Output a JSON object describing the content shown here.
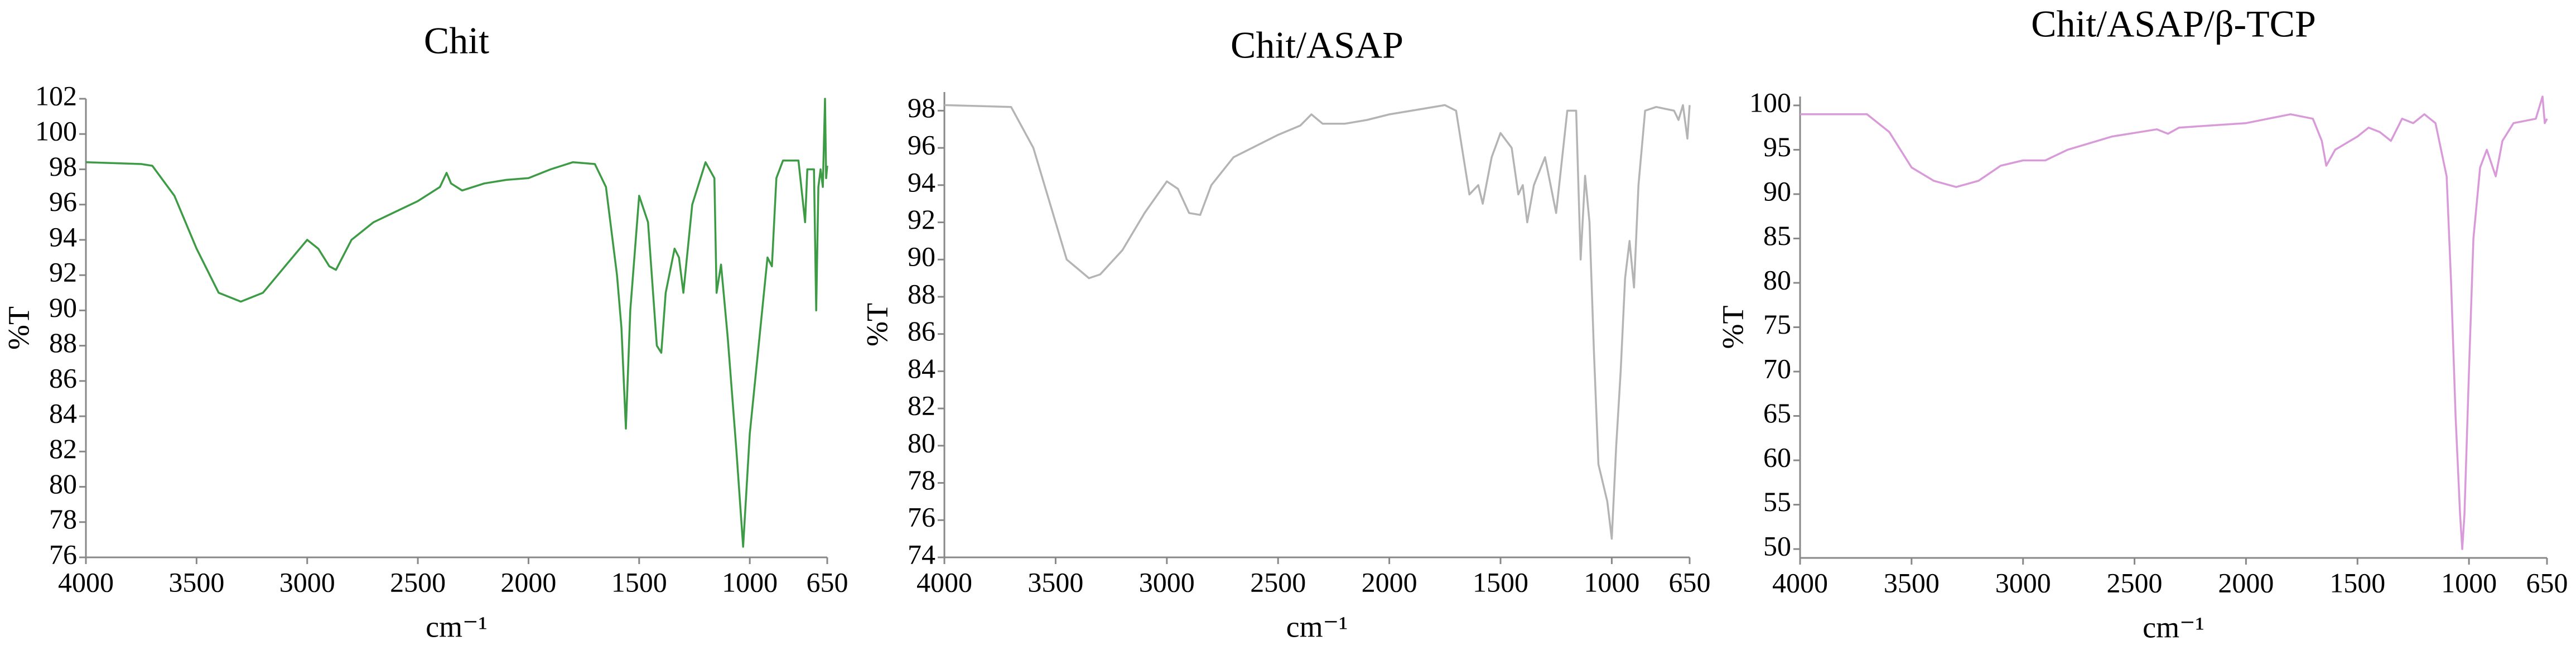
{
  "chart_data": [
    {
      "type": "line",
      "title": "Chit",
      "x_label": "cm⁻¹",
      "y_label": "%T",
      "color": "#3d9a45",
      "xlim": [
        4000,
        650
      ],
      "xticks": [
        4000,
        3500,
        3000,
        2500,
        2000,
        1500,
        1000,
        650
      ],
      "ylim": [
        76,
        102
      ],
      "yticks": [
        76,
        78,
        80,
        82,
        84,
        86,
        88,
        90,
        92,
        94,
        96,
        98,
        100,
        102
      ],
      "x": [
        4000,
        3750,
        3700,
        3600,
        3500,
        3400,
        3300,
        3200,
        3100,
        3000,
        2950,
        2900,
        2870,
        2800,
        2700,
        2500,
        2400,
        2370,
        2350,
        2300,
        2200,
        2100,
        2000,
        1900,
        1800,
        1700,
        1650,
        1600,
        1580,
        1560,
        1540,
        1500,
        1460,
        1420,
        1400,
        1380,
        1340,
        1320,
        1300,
        1260,
        1200,
        1160,
        1150,
        1130,
        1100,
        1060,
        1030,
        1000,
        960,
        920,
        900,
        880,
        850,
        780,
        750,
        740,
        710,
        700,
        690,
        680,
        670,
        660,
        655,
        650
      ],
      "values": [
        98.4,
        98.3,
        98.2,
        96.5,
        93.5,
        91,
        90.5,
        91,
        92.5,
        94,
        93.5,
        92.5,
        92.3,
        94,
        95,
        96.2,
        97,
        97.8,
        97.2,
        96.8,
        97.2,
        97.4,
        97.5,
        98,
        98.4,
        98.3,
        97,
        92,
        89,
        83.3,
        90,
        96.5,
        95,
        88,
        87.6,
        91,
        93.5,
        93,
        91,
        96,
        98.4,
        97.5,
        91,
        92.6,
        88.5,
        82,
        76.6,
        83,
        88,
        93,
        92.5,
        97.5,
        98.5,
        98.5,
        95,
        98,
        98,
        90,
        97,
        98,
        97,
        102,
        97.5,
        98.2
      ]
    },
    {
      "type": "line",
      "title": "Chit/ASAP",
      "x_label": "cm⁻¹",
      "y_label": "%T",
      "color": "#b4b4b4",
      "xlim": [
        4000,
        650
      ],
      "xticks": [
        4000,
        3500,
        3000,
        2500,
        2000,
        1500,
        1000,
        650
      ],
      "ylim": [
        74,
        99
      ],
      "yticks": [
        74,
        76,
        78,
        80,
        82,
        84,
        86,
        88,
        90,
        92,
        94,
        96,
        98
      ],
      "x": [
        4000,
        3700,
        3600,
        3500,
        3450,
        3400,
        3350,
        3300,
        3200,
        3100,
        3000,
        2950,
        2900,
        2850,
        2800,
        2700,
        2500,
        2400,
        2350,
        2300,
        2200,
        2100,
        2000,
        1900,
        1750,
        1700,
        1660,
        1640,
        1600,
        1580,
        1540,
        1500,
        1450,
        1420,
        1400,
        1380,
        1350,
        1300,
        1250,
        1200,
        1160,
        1140,
        1120,
        1100,
        1080,
        1060,
        1040,
        1020,
        1000,
        980,
        960,
        940,
        920,
        900,
        880,
        850,
        800,
        720,
        700,
        680,
        660,
        650
      ],
      "values": [
        98.3,
        98.2,
        96,
        92,
        90,
        89.5,
        89,
        89.2,
        90.5,
        92.5,
        94.2,
        93.8,
        92.5,
        92.4,
        94,
        95.5,
        96.7,
        97.2,
        97.8,
        97.3,
        97.3,
        97.5,
        97.8,
        98,
        98.3,
        98,
        95,
        93.5,
        94,
        93,
        95.5,
        96.8,
        96,
        93.5,
        94,
        92,
        94,
        95.5,
        92.5,
        98,
        98,
        90,
        94.5,
        92,
        85,
        79,
        78,
        77,
        75,
        80,
        84,
        89,
        91,
        88.5,
        94,
        98,
        98.2,
        98,
        97.5,
        98.3,
        96.5,
        98.3
      ]
    },
    {
      "type": "line",
      "title": "Chit/ASAP/β-TCP",
      "x_label": "cm⁻¹",
      "y_label": "%T",
      "color": "#d89ad8",
      "xlim": [
        4000,
        650
      ],
      "xticks": [
        4000,
        3500,
        3000,
        2500,
        2000,
        1500,
        1000,
        650
      ],
      "ylim": [
        49,
        101
      ],
      "yticks": [
        50,
        55,
        60,
        65,
        70,
        75,
        80,
        85,
        90,
        95,
        100
      ],
      "x": [
        4000,
        3700,
        3600,
        3500,
        3400,
        3300,
        3200,
        3100,
        3000,
        2900,
        2800,
        2600,
        2400,
        2350,
        2300,
        2000,
        1800,
        1700,
        1660,
        1640,
        1600,
        1500,
        1450,
        1400,
        1350,
        1300,
        1250,
        1200,
        1150,
        1100,
        1080,
        1060,
        1040,
        1030,
        1020,
        1000,
        980,
        950,
        920,
        880,
        850,
        800,
        700,
        670,
        660,
        650
      ],
      "values": [
        99,
        99,
        97,
        93,
        91.5,
        90.8,
        91.5,
        93.2,
        93.8,
        93.8,
        95,
        96.5,
        97.3,
        96.8,
        97.5,
        98,
        99,
        98.5,
        96,
        93.2,
        95,
        96.5,
        97.5,
        97,
        96,
        98.5,
        98,
        99,
        98,
        92,
        80,
        65,
        54,
        50,
        54,
        70,
        85,
        93,
        95,
        92,
        96,
        98,
        98.5,
        101,
        98,
        98.5
      ]
    }
  ]
}
